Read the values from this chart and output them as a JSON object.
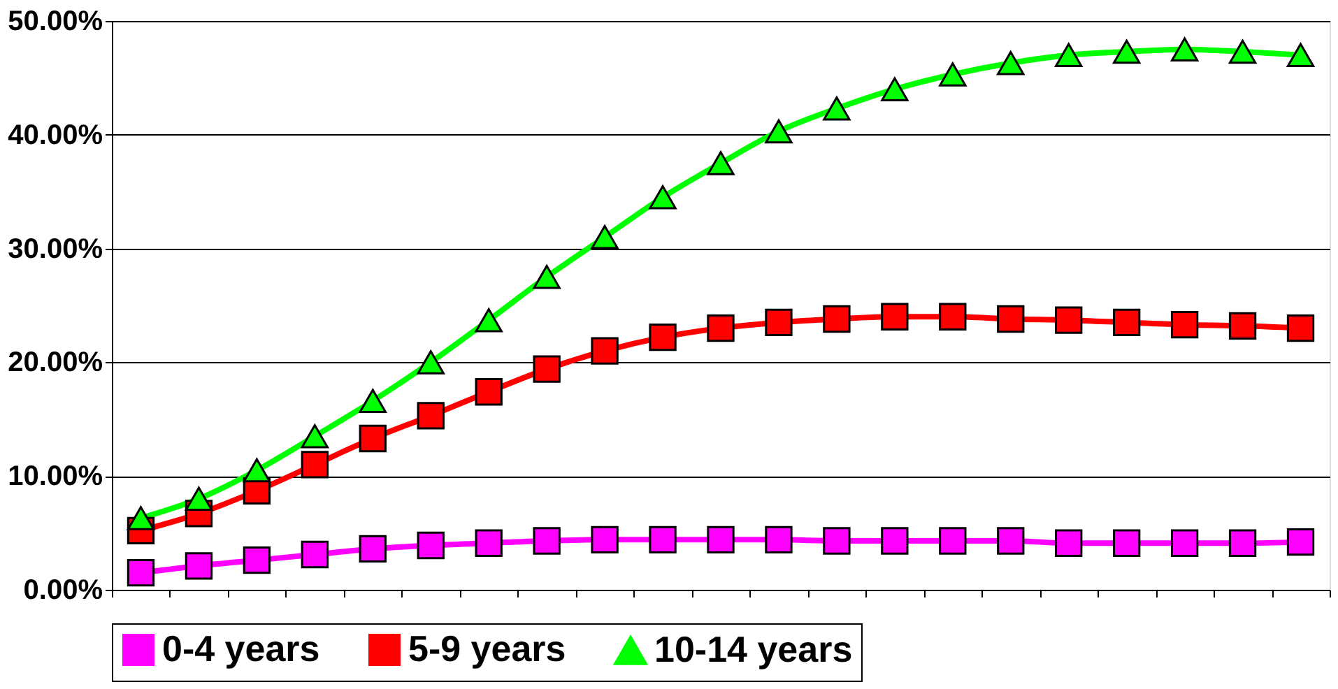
{
  "chart_data": {
    "type": "line",
    "categories": [
      null,
      null,
      null,
      null,
      null,
      null,
      null,
      null,
      null,
      null,
      null,
      null,
      null,
      null,
      null,
      null,
      null,
      null,
      null,
      null,
      null
    ],
    "series": [
      {
        "name": "0-4 years",
        "color": "#ff00ff",
        "marker": "square",
        "values": [
          1.5,
          2.1,
          2.6,
          3.1,
          3.6,
          3.9,
          4.1,
          4.3,
          4.4,
          4.4,
          4.4,
          4.4,
          4.3,
          4.3,
          4.3,
          4.3,
          4.1,
          4.1,
          4.1,
          4.1,
          4.2
        ]
      },
      {
        "name": "5-9 years",
        "color": "#ff0000",
        "marker": "square",
        "values": [
          5.2,
          6.7,
          8.7,
          11,
          13.3,
          15.3,
          17.4,
          19.4,
          21,
          22.2,
          23,
          23.5,
          23.8,
          24,
          24,
          23.8,
          23.7,
          23.5,
          23.3,
          23.2,
          23
        ]
      },
      {
        "name": "10-14 years",
        "color": "#00ff00",
        "marker": "triangle",
        "values": [
          6.3,
          8,
          10.5,
          13.5,
          16.6,
          20,
          23.7,
          27.5,
          31,
          34.5,
          37.5,
          40.3,
          42.3,
          44,
          45.3,
          46.3,
          47,
          47.3,
          47.5,
          47.3,
          47
        ]
      }
    ],
    "ylim": [
      0,
      50
    ],
    "yticks": [
      {
        "value": 0,
        "label": "0.00%"
      },
      {
        "value": 10,
        "label": "10.00%"
      },
      {
        "value": 20,
        "label": "20.00%"
      },
      {
        "value": 30,
        "label": "30.00%"
      },
      {
        "value": 40,
        "label": "40.00%"
      },
      {
        "value": 50,
        "label": "50.00%"
      }
    ],
    "grid": "y",
    "legend": "bottom",
    "tick_labels": "y",
    "line_style": "solid"
  }
}
